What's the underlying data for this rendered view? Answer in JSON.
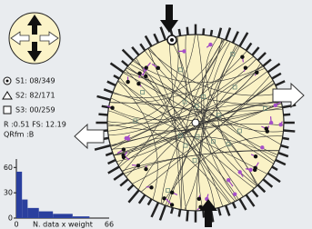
{
  "legend": {
    "s1": "S1: 08/349",
    "s2": "S2: 82/171",
    "s3": "S3: 00/259",
    "ratio": "R :0.51  FS: 12.19",
    "quality": "QRfm :B"
  },
  "histogram": {
    "type": "histogram",
    "bins": [
      0,
      4,
      8,
      16,
      26,
      40,
      52
    ],
    "counts": [
      55,
      22,
      12,
      8,
      5,
      2
    ],
    "color": "#2a3f9e",
    "ylim": [
      0,
      70
    ],
    "yticks": [
      0,
      30,
      60
    ],
    "xlim": [
      0,
      66
    ],
    "xticks": [
      0,
      66
    ],
    "xlabel": "N. data x weight"
  }
}
